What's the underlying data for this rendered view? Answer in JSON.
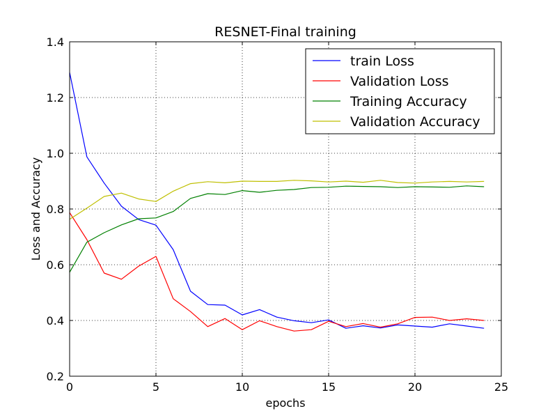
{
  "chart_data": {
    "type": "line",
    "title": "RESNET-Final training",
    "xlabel": "epochs",
    "ylabel": "Loss and Accuracy",
    "xlim": [
      0,
      25
    ],
    "ylim": [
      0.2,
      1.4
    ],
    "xticks": [
      0,
      5,
      10,
      15,
      20,
      25
    ],
    "yticks": [
      0.2,
      0.4,
      0.6,
      0.8,
      1.0,
      1.2,
      1.4
    ],
    "xtick_labels": [
      "0",
      "5",
      "10",
      "15",
      "20",
      "25"
    ],
    "ytick_labels": [
      "0.2",
      "0.4",
      "0.6",
      "0.8",
      "1.0",
      "1.2",
      "1.4"
    ],
    "grid": true,
    "legend_position": "top-right",
    "x": [
      0,
      1,
      2,
      3,
      4,
      5,
      6,
      7,
      8,
      9,
      10,
      11,
      12,
      13,
      14,
      15,
      16,
      17,
      18,
      19,
      20,
      21,
      22,
      23,
      24
    ],
    "series": [
      {
        "name": "train Loss",
        "color": "#0000ff",
        "values": [
          1.29,
          0.987,
          0.893,
          0.81,
          0.762,
          0.742,
          0.654,
          0.505,
          0.457,
          0.455,
          0.42,
          0.439,
          0.412,
          0.399,
          0.392,
          0.402,
          0.372,
          0.381,
          0.373,
          0.384,
          0.38,
          0.376,
          0.388,
          0.38,
          0.372
        ]
      },
      {
        "name": "Validation Loss",
        "color": "#ff0000",
        "values": [
          0.787,
          0.69,
          0.57,
          0.548,
          0.595,
          0.63,
          0.478,
          0.432,
          0.378,
          0.407,
          0.367,
          0.399,
          0.378,
          0.362,
          0.367,
          0.397,
          0.378,
          0.389,
          0.376,
          0.388,
          0.411,
          0.412,
          0.4,
          0.406,
          0.4
        ]
      },
      {
        "name": "Training Accuracy",
        "color": "#008000",
        "values": [
          0.573,
          0.681,
          0.715,
          0.743,
          0.765,
          0.768,
          0.791,
          0.838,
          0.855,
          0.852,
          0.866,
          0.86,
          0.867,
          0.87,
          0.877,
          0.878,
          0.882,
          0.881,
          0.88,
          0.877,
          0.88,
          0.879,
          0.878,
          0.883,
          0.88
        ]
      },
      {
        "name": "Validation Accuracy",
        "color": "#bfbf00",
        "values": [
          0.763,
          0.803,
          0.845,
          0.857,
          0.836,
          0.827,
          0.864,
          0.891,
          0.898,
          0.894,
          0.9,
          0.899,
          0.899,
          0.903,
          0.901,
          0.897,
          0.9,
          0.896,
          0.903,
          0.895,
          0.893,
          0.897,
          0.899,
          0.897,
          0.899
        ]
      }
    ]
  }
}
